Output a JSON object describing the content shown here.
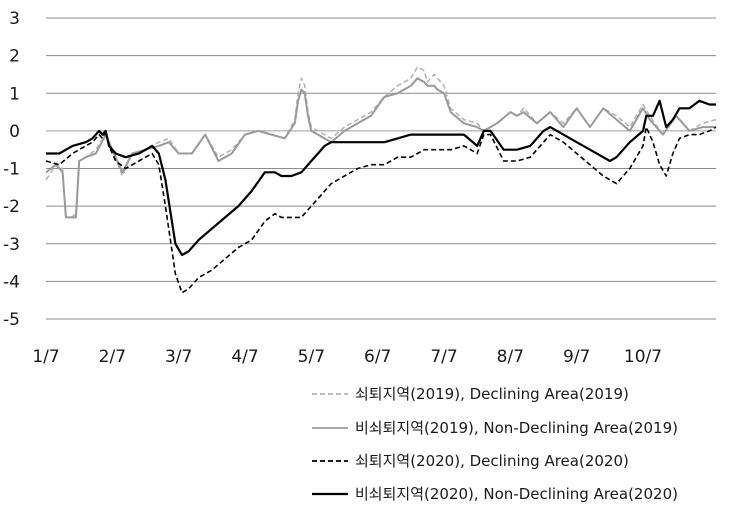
{
  "chart_data": {
    "type": "line",
    "title": "",
    "xlabel": "",
    "ylabel": "",
    "ylim": [
      -5,
      3
    ],
    "yticks": [
      3,
      2,
      1,
      0,
      -1,
      -2,
      -3,
      -4,
      -5
    ],
    "y_tick_labels": [
      "3",
      "2",
      "1",
      "0",
      "-1",
      "-2",
      "-3",
      "-4",
      "-5"
    ],
    "grid": "horizontal",
    "legend_position": "bottom-right",
    "x_tick_labels": [
      "1/7",
      "2/7",
      "3/7",
      "4/7",
      "5/7",
      "6/7",
      "7/7",
      "8/7",
      "9/7",
      "10/7"
    ],
    "x_tick_positions": [
      0,
      1,
      2,
      3,
      4,
      5,
      6,
      7,
      8,
      9
    ],
    "x_max": 10.1,
    "series": [
      {
        "name": "쇠퇴지역(2019), Declining Area(2019)",
        "color": "#b4b4b4",
        "dash": "dashed",
        "x": [
          0,
          0.15,
          0.25,
          0.3,
          0.38,
          0.45,
          0.5,
          0.6,
          0.75,
          0.9,
          1.0,
          1.15,
          1.3,
          1.5,
          1.7,
          1.85,
          2.0,
          2.2,
          2.4,
          2.6,
          2.8,
          3.0,
          3.2,
          3.4,
          3.6,
          3.75,
          3.8,
          3.85,
          3.9,
          3.95,
          4.0,
          4.1,
          4.3,
          4.5,
          4.7,
          4.9,
          5.1,
          5.3,
          5.5,
          5.6,
          5.7,
          5.75,
          5.8,
          5.85,
          5.9,
          6.0,
          6.1,
          6.3,
          6.5,
          6.6,
          6.8,
          7.0,
          7.1,
          7.2,
          7.4,
          7.6,
          7.8,
          8.0,
          8.2,
          8.4,
          8.6,
          8.8,
          9.0,
          9.1,
          9.3,
          9.5,
          9.7,
          9.9,
          10.1
        ],
        "values": [
          -1.3,
          -0.9,
          -1.0,
          -2.3,
          -2.3,
          -2.2,
          -0.8,
          -0.7,
          -0.5,
          -0.1,
          -0.5,
          -1.2,
          -0.6,
          -0.5,
          -0.3,
          -0.2,
          -0.6,
          -0.6,
          -0.1,
          -0.7,
          -0.5,
          -0.1,
          0.0,
          -0.1,
          -0.2,
          0.3,
          1.0,
          1.4,
          1.2,
          0.5,
          0.1,
          0.0,
          -0.2,
          0.1,
          0.3,
          0.5,
          0.9,
          1.2,
          1.4,
          1.7,
          1.6,
          1.3,
          1.4,
          1.5,
          1.4,
          1.2,
          0.6,
          0.3,
          0.2,
          0.0,
          0.2,
          0.5,
          0.4,
          0.6,
          0.2,
          0.5,
          0.2,
          0.6,
          0.1,
          0.6,
          0.4,
          0.1,
          0.7,
          0.4,
          -0.1,
          0.4,
          0.0,
          0.2,
          0.3
        ]
      },
      {
        "name": "비쇠퇴지역(2019), Non-Declining Area(2019)",
        "color": "#9a9a9a",
        "dash": "solid",
        "x": [
          0,
          0.15,
          0.25,
          0.3,
          0.38,
          0.45,
          0.5,
          0.6,
          0.75,
          0.9,
          1.0,
          1.15,
          1.3,
          1.5,
          1.7,
          1.85,
          2.0,
          2.2,
          2.4,
          2.6,
          2.8,
          3.0,
          3.2,
          3.4,
          3.6,
          3.75,
          3.8,
          3.85,
          3.9,
          3.95,
          4.0,
          4.1,
          4.3,
          4.5,
          4.7,
          4.9,
          5.1,
          5.3,
          5.5,
          5.6,
          5.7,
          5.75,
          5.8,
          5.85,
          5.9,
          6.0,
          6.1,
          6.3,
          6.5,
          6.6,
          6.8,
          7.0,
          7.1,
          7.2,
          7.4,
          7.6,
          7.8,
          8.0,
          8.2,
          8.4,
          8.6,
          8.8,
          9.0,
          9.1,
          9.3,
          9.5,
          9.7,
          9.9,
          10.1
        ],
        "values": [
          -1.1,
          -0.9,
          -1.1,
          -2.3,
          -2.3,
          -2.3,
          -0.8,
          -0.7,
          -0.6,
          -0.1,
          -0.5,
          -1.1,
          -0.6,
          -0.5,
          -0.4,
          -0.3,
          -0.6,
          -0.6,
          -0.1,
          -0.8,
          -0.6,
          -0.1,
          0.0,
          -0.1,
          -0.2,
          0.2,
          0.8,
          1.1,
          1.0,
          0.4,
          0.0,
          -0.1,
          -0.3,
          0.0,
          0.2,
          0.4,
          0.9,
          1.0,
          1.2,
          1.4,
          1.3,
          1.2,
          1.2,
          1.2,
          1.1,
          1.0,
          0.5,
          0.2,
          0.1,
          0.0,
          0.2,
          0.5,
          0.4,
          0.5,
          0.2,
          0.5,
          0.1,
          0.6,
          0.1,
          0.6,
          0.3,
          0.0,
          0.6,
          0.3,
          -0.1,
          0.4,
          0.0,
          0.1,
          0.1
        ]
      },
      {
        "name": "쇠퇴지역(2020), Declining Area(2020)",
        "color": "#000000",
        "dash": "dashed",
        "x": [
          0,
          0.2,
          0.4,
          0.6,
          0.7,
          0.8,
          0.85,
          0.9,
          0.95,
          1.05,
          1.2,
          1.4,
          1.6,
          1.7,
          1.8,
          1.95,
          2.05,
          2.15,
          2.3,
          2.5,
          2.7,
          2.9,
          3.1,
          3.3,
          3.45,
          3.55,
          3.7,
          3.85,
          4.0,
          4.1,
          4.2,
          4.3,
          4.5,
          4.7,
          4.9,
          5.1,
          5.3,
          5.5,
          5.7,
          5.9,
          6.1,
          6.3,
          6.5,
          6.6,
          6.7,
          6.9,
          7.1,
          7.3,
          7.5,
          7.6,
          7.8,
          8.0,
          8.2,
          8.4,
          8.5,
          8.6,
          8.8,
          9.0,
          9.05,
          9.15,
          9.25,
          9.35,
          9.45,
          9.55,
          9.7,
          9.85,
          10.0,
          10.1
        ],
        "values": [
          -0.8,
          -0.9,
          -0.6,
          -0.4,
          -0.3,
          -0.1,
          -0.2,
          0.0,
          -0.4,
          -0.8,
          -1.0,
          -0.8,
          -0.6,
          -0.9,
          -2.0,
          -3.8,
          -4.3,
          -4.2,
          -3.9,
          -3.7,
          -3.4,
          -3.1,
          -2.9,
          -2.4,
          -2.2,
          -2.3,
          -2.3,
          -2.3,
          -2.0,
          -1.8,
          -1.6,
          -1.4,
          -1.2,
          -1.0,
          -0.9,
          -0.9,
          -0.7,
          -0.7,
          -0.5,
          -0.5,
          -0.5,
          -0.4,
          -0.6,
          -0.1,
          -0.1,
          -0.8,
          -0.8,
          -0.7,
          -0.3,
          -0.1,
          -0.3,
          -0.6,
          -0.9,
          -1.2,
          -1.3,
          -1.4,
          -1.0,
          -0.4,
          0.1,
          -0.3,
          -0.9,
          -1.2,
          -0.6,
          -0.2,
          -0.1,
          -0.1,
          0.0,
          0.1
        ]
      },
      {
        "name": "비쇠퇴지역(2020), Non-Declining Area(2020)",
        "color": "#000000",
        "dash": "solid",
        "x": [
          0,
          0.2,
          0.4,
          0.6,
          0.7,
          0.8,
          0.85,
          0.9,
          0.95,
          1.05,
          1.2,
          1.4,
          1.6,
          1.7,
          1.8,
          1.95,
          2.05,
          2.15,
          2.3,
          2.5,
          2.7,
          2.9,
          3.1,
          3.3,
          3.45,
          3.55,
          3.7,
          3.85,
          4.0,
          4.1,
          4.2,
          4.3,
          4.5,
          4.7,
          4.9,
          5.1,
          5.3,
          5.5,
          5.7,
          5.9,
          6.1,
          6.3,
          6.5,
          6.6,
          6.7,
          6.9,
          7.1,
          7.3,
          7.5,
          7.6,
          7.8,
          8.0,
          8.2,
          8.4,
          8.5,
          8.6,
          8.8,
          9.0,
          9.05,
          9.15,
          9.25,
          9.35,
          9.45,
          9.55,
          9.7,
          9.85,
          10.0,
          10.1
        ],
        "values": [
          -0.6,
          -0.6,
          -0.4,
          -0.3,
          -0.2,
          0.0,
          -0.1,
          0.0,
          -0.4,
          -0.6,
          -0.7,
          -0.6,
          -0.4,
          -0.6,
          -1.3,
          -3.0,
          -3.3,
          -3.2,
          -2.9,
          -2.6,
          -2.3,
          -2.0,
          -1.6,
          -1.1,
          -1.1,
          -1.2,
          -1.2,
          -1.1,
          -0.8,
          -0.6,
          -0.4,
          -0.3,
          -0.3,
          -0.3,
          -0.3,
          -0.3,
          -0.2,
          -0.1,
          -0.1,
          -0.1,
          -0.1,
          -0.1,
          -0.4,
          0.0,
          0.0,
          -0.5,
          -0.5,
          -0.4,
          0.0,
          0.1,
          -0.1,
          -0.3,
          -0.5,
          -0.7,
          -0.8,
          -0.7,
          -0.3,
          0.0,
          0.4,
          0.4,
          0.8,
          0.1,
          0.3,
          0.6,
          0.6,
          0.8,
          0.7,
          0.7
        ]
      }
    ]
  }
}
